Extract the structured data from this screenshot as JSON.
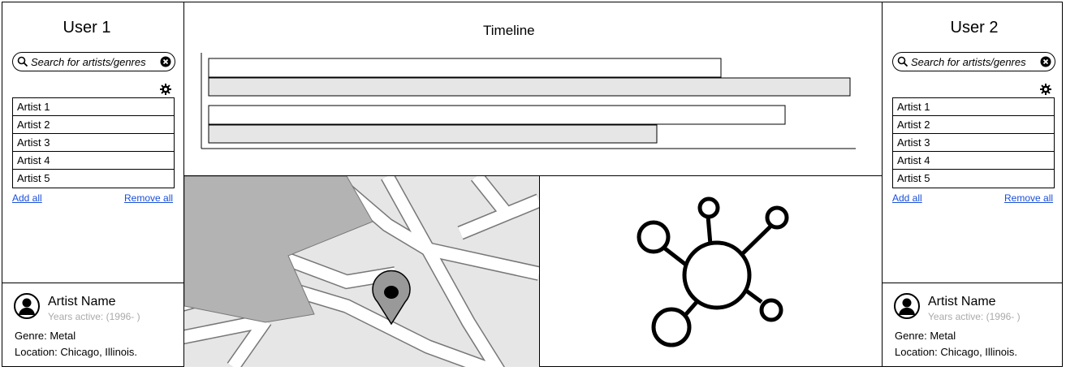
{
  "users": [
    {
      "title": "User 1",
      "search": {
        "placeholder": "Search for artists/genres"
      },
      "artists": [
        "Artist 1",
        "Artist 2",
        "Artist 3",
        "Artist 4",
        "Artist 5"
      ],
      "add_all": "Add all",
      "remove_all": "Remove all",
      "profile": {
        "name": "Artist Name",
        "years": "Years active: (1996- )",
        "genre": "Genre: Metal",
        "location": "Location: Chicago, Illinois."
      }
    },
    {
      "title": "User 2",
      "search": {
        "placeholder": "Search for artists/genres"
      },
      "artists": [
        "Artist 1",
        "Artist 2",
        "Artist 3",
        "Artist 4",
        "Artist 5"
      ],
      "add_all": "Add all",
      "remove_all": "Remove all",
      "profile": {
        "name": "Artist Name",
        "years": "Years active: (1996- )",
        "genre": "Genre: Metal",
        "location": "Location: Chicago, Illinois."
      }
    }
  ],
  "timeline": {
    "title": "Timeline"
  },
  "icons": {
    "search": "search-icon",
    "clear": "clear-icon",
    "settings": "gear-icon",
    "avatar": "user-avatar-icon",
    "map_pin": "map-pin-icon",
    "network": "network-graph-icon"
  },
  "colors": {
    "link": "#1a4fd8",
    "map_block": "#b3b3b3",
    "map_ground": "#e6e6e6"
  }
}
